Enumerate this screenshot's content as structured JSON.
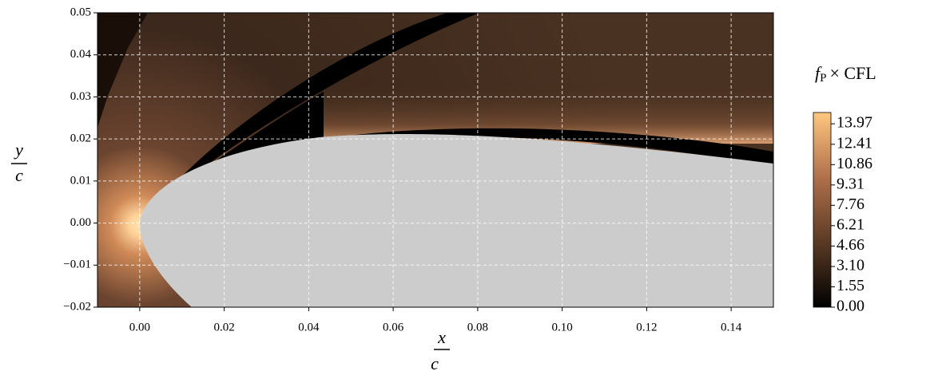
{
  "chart_data": {
    "type": "contour",
    "xlabel": {
      "num": "x",
      "den": "c"
    },
    "ylabel": {
      "num": "y",
      "den": "c"
    },
    "colorbar_label": {
      "base": "f",
      "sub": "P",
      "rest": "× CFL"
    },
    "xlim": [
      -0.01,
      0.15
    ],
    "xticks": [
      {
        "value": 0,
        "label": "0.00"
      },
      {
        "value": 0.02,
        "label": "0.02"
      },
      {
        "value": 0.04,
        "label": "0.04"
      },
      {
        "value": 0.06,
        "label": "0.06"
      },
      {
        "value": 0.08,
        "label": "0.08"
      },
      {
        "value": 0.1,
        "label": "0.10"
      },
      {
        "value": 0.12,
        "label": "0.12"
      },
      {
        "value": 0.14,
        "label": "0.14"
      }
    ],
    "ylim": [
      -0.02,
      0.05
    ],
    "yticks": [
      {
        "value": -0.02,
        "label": "−0.02"
      },
      {
        "value": -0.01,
        "label": "−0.01"
      },
      {
        "value": 0,
        "label": "0.00"
      },
      {
        "value": 0.01,
        "label": "0.01"
      },
      {
        "value": 0.02,
        "label": "0.02"
      },
      {
        "value": 0.03,
        "label": "0.03"
      },
      {
        "value": 0.04,
        "label": "0.04"
      },
      {
        "value": 0.05,
        "label": "0.05"
      }
    ],
    "clim": [
      0,
      14.83
    ],
    "cticks": [
      {
        "value": 0,
        "label": "0.00"
      },
      1.55,
      {
        "value": 3.1,
        "label": "3.10"
      },
      4.66,
      6.21,
      7.76,
      9.31,
      10.86,
      12.41,
      13.97
    ],
    "cmap": [
      "#000000",
      "#5a3a25",
      "#b0704a",
      "#ffc77f"
    ],
    "grid": true
  }
}
